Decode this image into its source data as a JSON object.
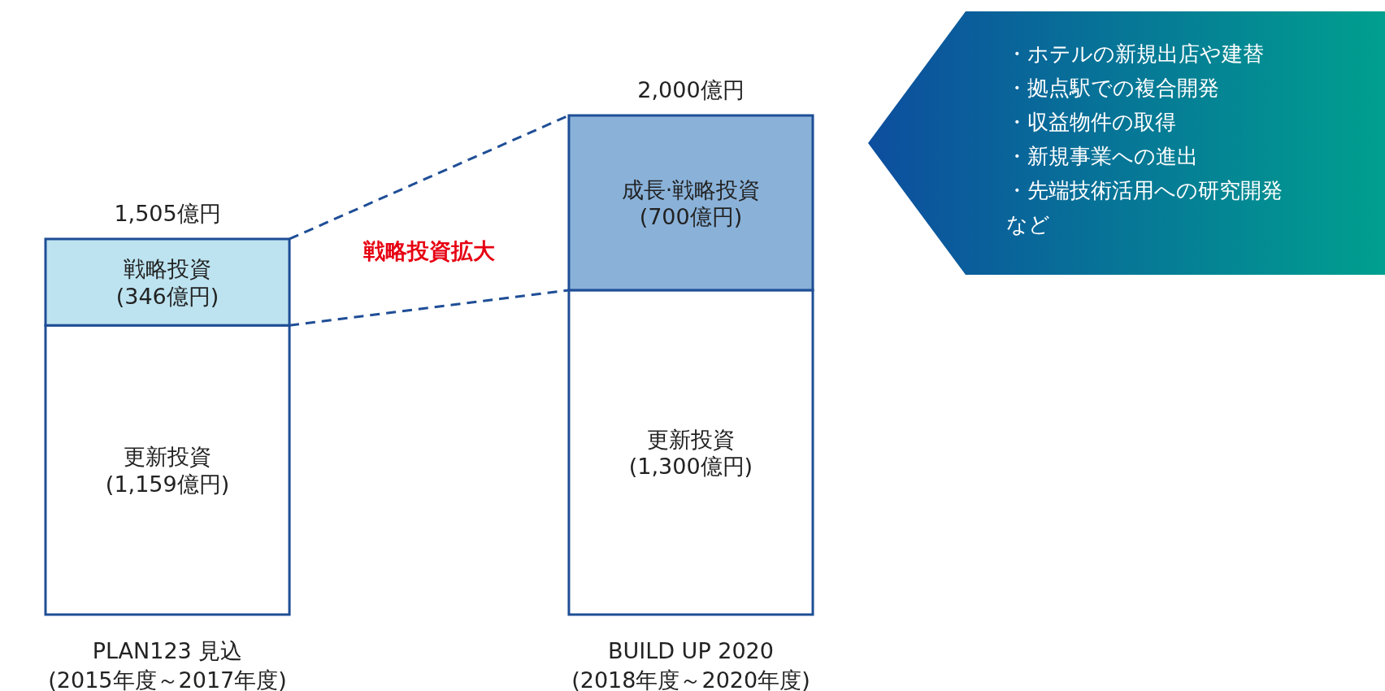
{
  "chart_data": {
    "type": "bar",
    "stacked": true,
    "categories": [
      "PLAN123 見込\n(2015年度～2017年度)",
      "BUILD UP 2020\n(2018年度～2020年度)"
    ],
    "series": [
      {
        "values": [
          1159,
          1300
        ],
        "colors": [
          "#ffffff",
          "#ffffff"
        ],
        "value_labels": [
          "更新投資\n(1,159億円)",
          "更新投資\n(1,300億円)"
        ]
      },
      {
        "values": [
          346,
          700
        ],
        "colors": [
          "#bde3f0",
          "#8ab2d9"
        ],
        "value_labels": [
          "戦略投資\n(346億円)",
          "成長·戦略投資\n(700億円)"
        ]
      }
    ],
    "totals": [
      "1,505億円",
      "2,000億円"
    ],
    "ylim": [
      0,
      2000
    ],
    "tick_labels": "x",
    "annotations": [
      "戦略投資拡大",
      "・ホテルの新規出店や建替",
      "・拠点駅での複合開発",
      "・収益物件の取得",
      "・新規事業への進出",
      "・先端技術活用への研究開発",
      "など"
    ]
  }
}
